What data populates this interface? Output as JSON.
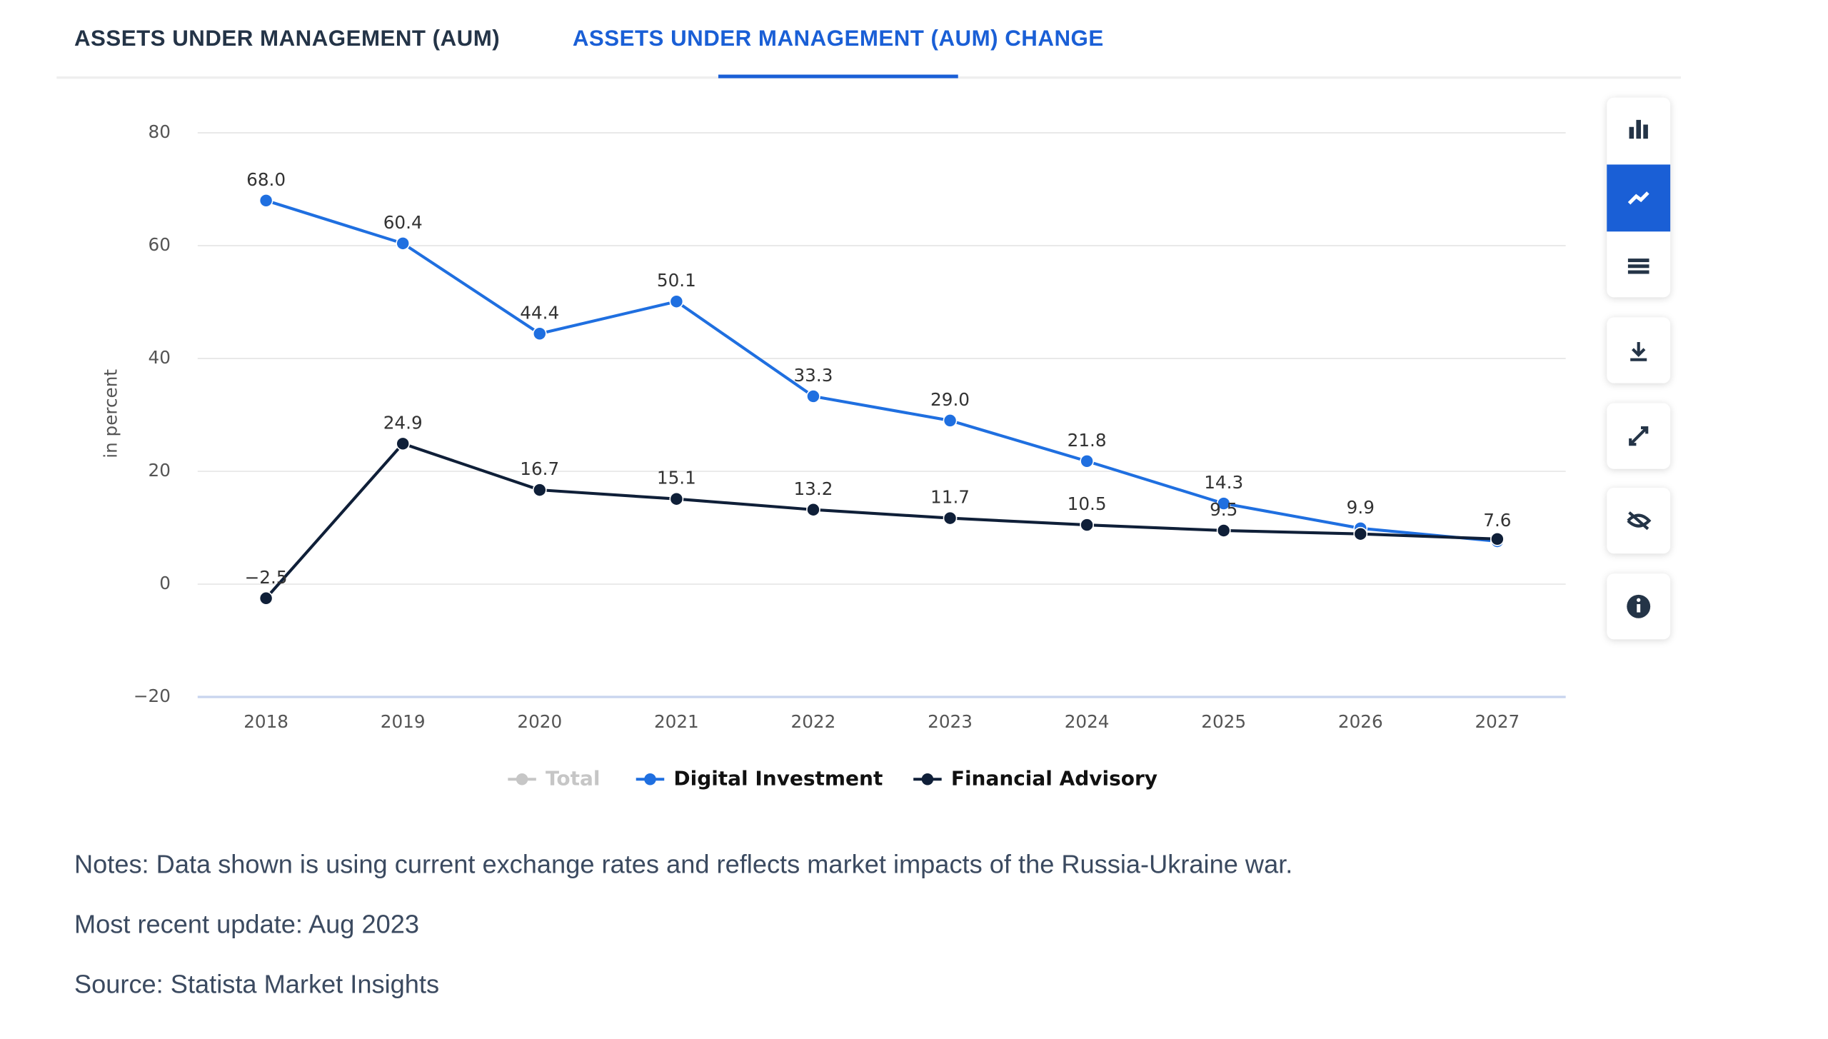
{
  "tabs": [
    "ASSETS UNDER MANAGEMENT (AUM)",
    "ASSETS UNDER MANAGEMENT (AUM) CHANGE"
  ],
  "active_tab": 1,
  "chart_data": {
    "type": "line",
    "ylabel": "in percent",
    "categories": [
      "2018",
      "2019",
      "2020",
      "2021",
      "2022",
      "2023",
      "2024",
      "2025",
      "2026",
      "2027"
    ],
    "ylim": [
      -20,
      80
    ],
    "yticks": [
      {
        "value": -20,
        "label": "−20"
      },
      0,
      20,
      40,
      60,
      80
    ],
    "grid": true,
    "series": [
      {
        "name": "Total",
        "color": "#c6c6c6",
        "hidden": true,
        "values": [
          null,
          null,
          null,
          null,
          null,
          null,
          null,
          null,
          null,
          null
        ]
      },
      {
        "name": "Digital Investment",
        "color": "#1f6fe0",
        "values": [
          68.0,
          60.4,
          44.4,
          50.1,
          33.3,
          29.0,
          21.8,
          14.3,
          9.9,
          7.6
        ],
        "value_labels": [
          "68.0",
          "60.4",
          "44.4",
          "50.1",
          "33.3",
          "29.0",
          "21.8",
          "14.3",
          "9.9",
          "7.6"
        ]
      },
      {
        "name": "Financial Advisory",
        "color": "#0f1f38",
        "values": [
          -2.5,
          24.9,
          16.7,
          15.1,
          13.2,
          11.7,
          10.5,
          9.5,
          8.9,
          8.0
        ],
        "value_labels": [
          "−2.5",
          "24.9",
          "16.7",
          "15.1",
          "13.2",
          "11.7",
          "10.5",
          "9.5",
          null,
          null
        ]
      }
    ]
  },
  "notes": [
    "Notes: Data shown is using current exchange rates and reflects market impacts of the Russia-Ukraine war.",
    "Most recent update: Aug 2023",
    "Source: Statista Market Insights"
  ]
}
